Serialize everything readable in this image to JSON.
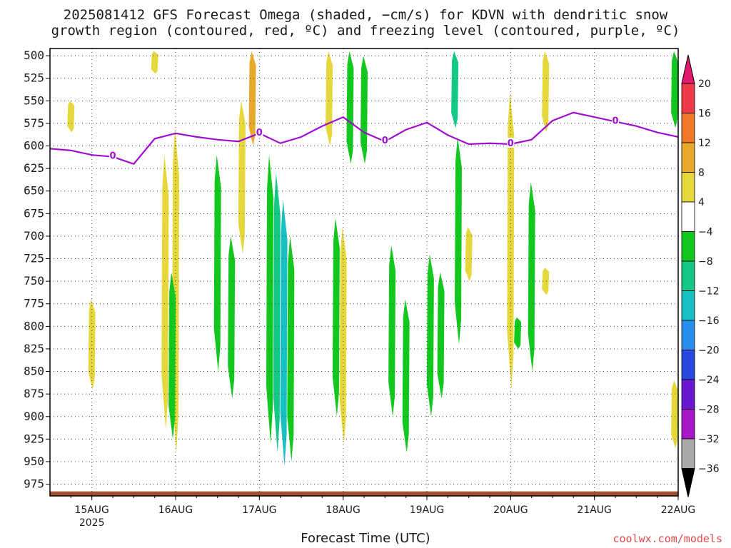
{
  "title_line1": "2025081412 GFS Forecast Omega (shaded, −cm/s) for KDVN with dendritic snow",
  "title_line2": "growth region (contoured, red, ºC) and freezing level (contoured, purple, ºC)",
  "xlabel": "Forecast Time (UTC)",
  "credit": "coolwx.com/models",
  "chart_data": {
    "type": "heatmap",
    "x_axis": {
      "range": [
        "2025-08-14T12",
        "2025-08-22T00"
      ],
      "ticks": [
        "15AUG",
        "16AUG",
        "17AUG",
        "18AUG",
        "19AUG",
        "20AUG",
        "21AUG",
        "22AUG"
      ],
      "year_label": "2025"
    },
    "y_axis": {
      "unit": "hPa",
      "inverted": true,
      "range": [
        988,
        492
      ],
      "ticks": [
        500,
        525,
        550,
        575,
        600,
        625,
        650,
        675,
        700,
        725,
        750,
        775,
        800,
        825,
        850,
        875,
        900,
        925,
        950,
        975
      ]
    },
    "grid": true,
    "colorbar": {
      "labels": [
        "20",
        "16",
        "12",
        "8",
        "4",
        "−4",
        "−8",
        "−12",
        "−16",
        "−20",
        "−24",
        "−28",
        "−32",
        "−36"
      ],
      "bands": [
        {
          "from": 16,
          "to": 20,
          "color": "#f03a4a"
        },
        {
          "from": 12,
          "to": 16,
          "color": "#f07828"
        },
        {
          "from": 8,
          "to": 12,
          "color": "#e8a82c"
        },
        {
          "from": 4,
          "to": 8,
          "color": "#e6d83c"
        },
        {
          "from": -4,
          "to": 4,
          "color": "#ffffff"
        },
        {
          "from": -8,
          "to": -4,
          "color": "#12c81e"
        },
        {
          "from": -12,
          "to": -8,
          "color": "#14c888"
        },
        {
          "from": -16,
          "to": -12,
          "color": "#18c0c4"
        },
        {
          "from": -20,
          "to": -16,
          "color": "#2890ec"
        },
        {
          "from": -24,
          "to": -20,
          "color": "#2848e0"
        },
        {
          "from": -28,
          "to": -24,
          "color": "#6a18d0"
        },
        {
          "from": -32,
          "to": -28,
          "color": "#a818c8"
        },
        {
          "from": -36,
          "to": -32,
          "color": "#a8a8a8"
        }
      ],
      "over_color": "#e0186e",
      "under_color": "#000000"
    },
    "freezing_level": {
      "label": "0",
      "color": "#a00fd0",
      "x": [
        "2025-08-14T12",
        "2025-08-14T18",
        "2025-08-15T00",
        "2025-08-15T06",
        "2025-08-15T12",
        "2025-08-15T18",
        "2025-08-16T00",
        "2025-08-16T06",
        "2025-08-16T12",
        "2025-08-16T18",
        "2025-08-17T00",
        "2025-08-17T06",
        "2025-08-17T12",
        "2025-08-17T18",
        "2025-08-18T00",
        "2025-08-18T06",
        "2025-08-18T12",
        "2025-08-18T18",
        "2025-08-19T00",
        "2025-08-19T06",
        "2025-08-19T12",
        "2025-08-19T18",
        "2025-08-20T00",
        "2025-08-20T06",
        "2025-08-20T12",
        "2025-08-20T18",
        "2025-08-21T00",
        "2025-08-21T06",
        "2025-08-21T12",
        "2025-08-21T18",
        "2025-08-22T00"
      ],
      "y": [
        603,
        605,
        610,
        612,
        620,
        592,
        586,
        590,
        593,
        595,
        586,
        597,
        590,
        578,
        568,
        585,
        595,
        582,
        574,
        588,
        598,
        597,
        598,
        593,
        572,
        563,
        568,
        573,
        578,
        585,
        590
      ]
    },
    "shaded_regions": [
      {
        "x": "2025-08-14T18",
        "p_top": 550,
        "p_bottom": 585,
        "value": 5
      },
      {
        "x": "2025-08-15T00",
        "p_top": 770,
        "p_bottom": 870,
        "value": 5
      },
      {
        "x": "2025-08-15T18",
        "p_top": 495,
        "p_bottom": 520,
        "value": 5
      },
      {
        "x": "2025-08-15T21",
        "p_top": 610,
        "p_bottom": 915,
        "value": 5
      },
      {
        "x": "2025-08-16T00",
        "p_top": 580,
        "p_bottom": 940,
        "value": 5
      },
      {
        "x": "2025-08-15T23",
        "p_top": 740,
        "p_bottom": 925,
        "value": -6
      },
      {
        "x": "2025-08-16T12",
        "p_top": 610,
        "p_bottom": 850,
        "value": -6
      },
      {
        "x": "2025-08-16T16",
        "p_top": 700,
        "p_bottom": 880,
        "value": -6
      },
      {
        "x": "2025-08-16T19",
        "p_top": 550,
        "p_bottom": 720,
        "value": 5
      },
      {
        "x": "2025-08-16T22",
        "p_top": 495,
        "p_bottom": 600,
        "value": 8
      },
      {
        "x": "2025-08-17T03",
        "p_top": 610,
        "p_bottom": 930,
        "value": -6
      },
      {
        "x": "2025-08-17T05",
        "p_top": 630,
        "p_bottom": 940,
        "value": -10
      },
      {
        "x": "2025-08-17T07",
        "p_top": 660,
        "p_bottom": 955,
        "value": -14
      },
      {
        "x": "2025-08-17T09",
        "p_top": 700,
        "p_bottom": 950,
        "value": -6
      },
      {
        "x": "2025-08-17T20",
        "p_top": 495,
        "p_bottom": 600,
        "value": 5
      },
      {
        "x": "2025-08-17T22",
        "p_top": 680,
        "p_bottom": 900,
        "value": -6
      },
      {
        "x": "2025-08-18T00",
        "p_top": 690,
        "p_bottom": 930,
        "value": 6
      },
      {
        "x": "2025-08-18T02",
        "p_top": 495,
        "p_bottom": 620,
        "value": -6
      },
      {
        "x": "2025-08-18T06",
        "p_top": 500,
        "p_bottom": 620,
        "value": -6
      },
      {
        "x": "2025-08-18T14",
        "p_top": 710,
        "p_bottom": 900,
        "value": -6
      },
      {
        "x": "2025-08-18T18",
        "p_top": 770,
        "p_bottom": 940,
        "value": -6
      },
      {
        "x": "2025-08-19T01",
        "p_top": 720,
        "p_bottom": 900,
        "value": -6
      },
      {
        "x": "2025-08-19T04",
        "p_top": 740,
        "p_bottom": 880,
        "value": -6
      },
      {
        "x": "2025-08-19T08",
        "p_top": 495,
        "p_bottom": 580,
        "value": -10
      },
      {
        "x": "2025-08-19T09",
        "p_top": 590,
        "p_bottom": 820,
        "value": -6
      },
      {
        "x": "2025-08-19T12",
        "p_top": 690,
        "p_bottom": 750,
        "value": 5
      },
      {
        "x": "2025-08-20T00",
        "p_top": 540,
        "p_bottom": 870,
        "value": 5
      },
      {
        "x": "2025-08-20T02",
        "p_top": 790,
        "p_bottom": 825,
        "value": -6
      },
      {
        "x": "2025-08-20T06",
        "p_top": 640,
        "p_bottom": 850,
        "value": -6
      },
      {
        "x": "2025-08-20T10",
        "p_top": 495,
        "p_bottom": 585,
        "value": 5
      },
      {
        "x": "2025-08-20T10",
        "p_top": 735,
        "p_bottom": 765,
        "value": 5
      },
      {
        "x": "2025-08-21T23",
        "p_top": 495,
        "p_bottom": 580,
        "value": -6
      },
      {
        "x": "2025-08-21T23",
        "p_top": 860,
        "p_bottom": 935,
        "value": 5
      }
    ],
    "ground": {
      "p_top": 983,
      "color": "#a0522d"
    }
  }
}
